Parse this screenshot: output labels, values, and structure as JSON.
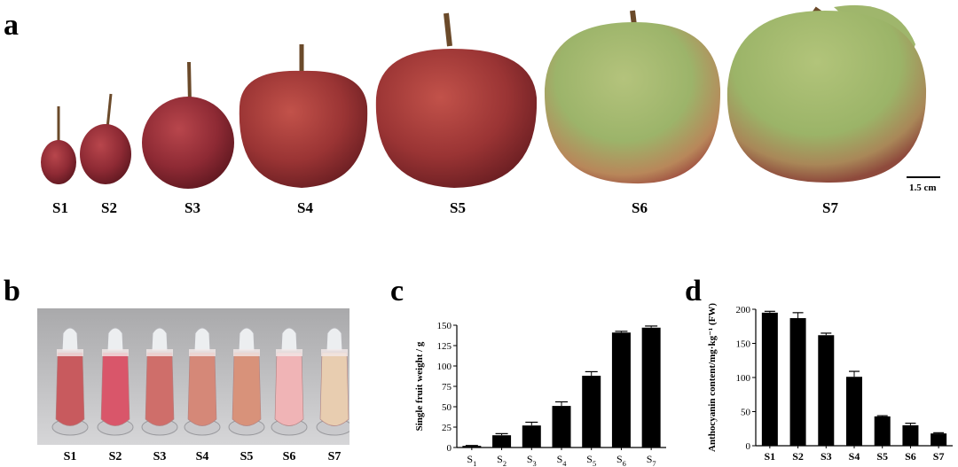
{
  "panels": {
    "a": "a",
    "b": "b",
    "c": "c",
    "d": "d"
  },
  "stages": [
    "S1",
    "S2",
    "S3",
    "S4",
    "S5",
    "S6",
    "S7"
  ],
  "scale_bar_label": "1.5 cm",
  "colors": {
    "apple_red": "#8e2a34",
    "apple_green": "#9cb46a",
    "tube_colors": [
      "#c85a5e",
      "#d9566a",
      "#cf6e6a",
      "#d58878",
      "#d8927a",
      "#f0b4b6",
      "#e8cdb0"
    ],
    "bar": "#000000"
  },
  "chart_data": [
    {
      "type": "bar",
      "panel": "c",
      "categories": [
        "S1",
        "S2",
        "S3",
        "S4",
        "S5",
        "S6",
        "S7"
      ],
      "values": [
        2,
        15,
        27,
        51,
        88,
        141,
        147
      ],
      "errors": [
        0.5,
        2,
        4,
        5,
        5,
        1.5,
        2
      ],
      "ylabel": "Single fruit weight / g",
      "ylim": [
        0,
        150
      ],
      "yticks": [
        0,
        25,
        50,
        75,
        100,
        125,
        150
      ]
    },
    {
      "type": "bar",
      "panel": "d",
      "categories": [
        "S1",
        "S2",
        "S3",
        "S4",
        "S5",
        "S6",
        "S7"
      ],
      "values": [
        195,
        187,
        162,
        101,
        43,
        30,
        18
      ],
      "errors": [
        2,
        8,
        3,
        8,
        1,
        3,
        1
      ],
      "ylabel": "Anthocyanin content/mg·kg⁻¹ (FW)",
      "ylim": [
        0,
        200
      ],
      "yticks": [
        0,
        50,
        100,
        150,
        200
      ]
    }
  ]
}
